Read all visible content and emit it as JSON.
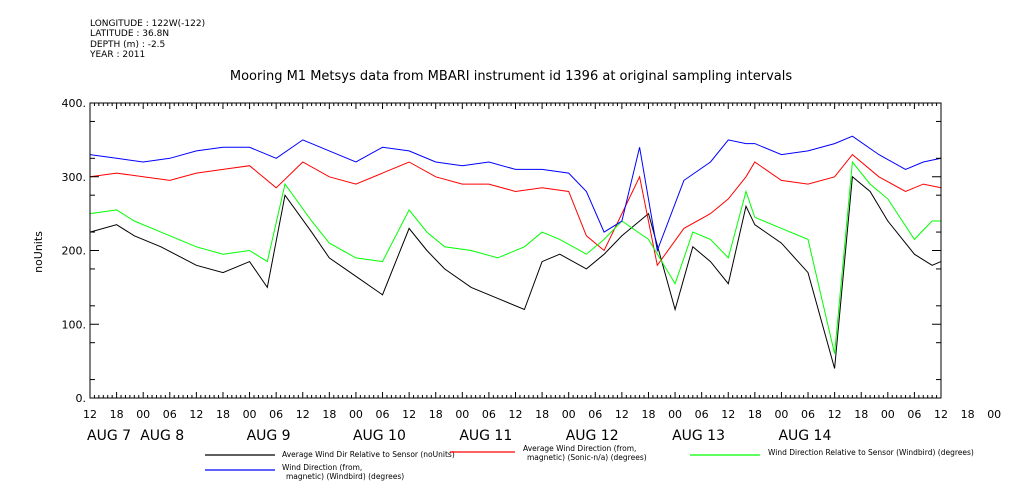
{
  "header": {
    "lines": [
      "LONGITUDE : 122W(-122)",
      "LATITUDE : 36.8N",
      "DEPTH (m) : -2.5",
      "YEAR : 2011"
    ]
  },
  "chart_data": {
    "type": "line",
    "title": "Mooring M1 Metsys data from MBARI instrument id 1396 at original sampling intervals",
    "ylabel": "noUnits",
    "xlabel": "",
    "ylim": [
      0,
      400
    ],
    "yticks": [
      "0.",
      "100.",
      "200.",
      "300.",
      "400."
    ],
    "x_hour_ticks": [
      "12",
      "18",
      "00",
      "06",
      "12",
      "18",
      "00",
      "06",
      "12",
      "18",
      "00",
      "06",
      "12",
      "18",
      "00",
      "06",
      "12",
      "18",
      "00",
      "06",
      "12",
      "18",
      "00",
      "06",
      "12",
      "18",
      "00",
      "06",
      "12",
      "18",
      "00",
      "06",
      "12",
      "18",
      "00",
      "06",
      "12"
    ],
    "x_day_labels": [
      "AUG  7",
      "AUG  8",
      "AUG  9",
      "AUG 10",
      "AUG 11",
      "AUG 12",
      "AUG 13",
      "AUG 14"
    ],
    "xlim_hours": [
      0,
      192
    ],
    "grid": false,
    "legend_position": "bottom",
    "series": [
      {
        "name": "Average Wind Dir Relative to Sensor (noUnits)",
        "color": "#000000",
        "x": [
          0,
          6,
          10,
          16,
          24,
          30,
          36,
          40,
          44,
          50,
          54,
          60,
          66,
          72,
          76,
          80,
          86,
          92,
          98,
          102,
          106,
          112,
          116,
          120,
          126,
          132,
          136,
          140,
          144,
          148,
          150,
          156,
          162,
          168,
          172,
          176,
          180,
          186,
          190,
          192
        ],
        "y": [
          225,
          235,
          220,
          205,
          180,
          170,
          185,
          150,
          275,
          225,
          190,
          165,
          140,
          230,
          200,
          175,
          150,
          135,
          120,
          185,
          195,
          175,
          195,
          220,
          250,
          120,
          205,
          185,
          155,
          260,
          235,
          210,
          170,
          40,
          300,
          280,
          240,
          195,
          180,
          185
        ]
      },
      {
        "name": "Average Wind Direction (from, magnetic) (Sonic-n/a) (degrees)",
        "color": "#ff0000",
        "x": [
          0,
          6,
          12,
          18,
          24,
          30,
          36,
          42,
          48,
          54,
          60,
          66,
          72,
          78,
          84,
          90,
          96,
          102,
          108,
          112,
          116,
          120,
          124,
          128,
          134,
          140,
          144,
          148,
          150,
          156,
          162,
          168,
          172,
          178,
          184,
          188,
          192
        ],
        "y": [
          300,
          305,
          300,
          295,
          305,
          310,
          315,
          285,
          320,
          300,
          290,
          305,
          320,
          300,
          290,
          290,
          280,
          285,
          280,
          220,
          200,
          250,
          300,
          180,
          230,
          250,
          270,
          300,
          320,
          295,
          290,
          300,
          330,
          300,
          280,
          290,
          285
        ]
      },
      {
        "name": "Wind Direction Relative to Sensor (Windbird) (degrees)",
        "color": "#00ff00",
        "x": [
          0,
          6,
          10,
          16,
          24,
          30,
          36,
          40,
          44,
          50,
          54,
          60,
          66,
          72,
          76,
          80,
          86,
          92,
          98,
          102,
          106,
          112,
          116,
          120,
          126,
          132,
          136,
          140,
          144,
          148,
          150,
          156,
          162,
          168,
          172,
          176,
          180,
          186,
          190,
          192
        ],
        "y": [
          250,
          255,
          240,
          225,
          205,
          195,
          200,
          185,
          290,
          240,
          210,
          190,
          185,
          255,
          225,
          205,
          200,
          190,
          205,
          225,
          215,
          195,
          215,
          240,
          215,
          155,
          225,
          215,
          190,
          280,
          245,
          230,
          215,
          60,
          320,
          290,
          270,
          215,
          240,
          240
        ]
      },
      {
        "name": "Wind Direction (from, magnetic) (Windbird) (degrees)",
        "color": "#0000ff",
        "x": [
          0,
          6,
          12,
          18,
          24,
          30,
          36,
          42,
          48,
          54,
          60,
          66,
          72,
          78,
          84,
          90,
          96,
          102,
          108,
          112,
          116,
          120,
          124,
          128,
          134,
          140,
          144,
          148,
          150,
          156,
          162,
          168,
          172,
          178,
          184,
          188,
          192
        ],
        "y": [
          330,
          325,
          320,
          325,
          335,
          340,
          340,
          325,
          350,
          335,
          320,
          340,
          335,
          320,
          315,
          320,
          310,
          310,
          305,
          280,
          225,
          240,
          340,
          200,
          295,
          320,
          350,
          345,
          345,
          330,
          335,
          345,
          355,
          330,
          310,
          320,
          325
        ]
      }
    ],
    "legend": [
      {
        "label": "Average Wind Dir Relative to Sensor (noUnits)",
        "color": "#000000"
      },
      {
        "label": "Average Wind Direction (from, magnetic) (Sonic-n/a) (degrees)",
        "color": "#ff0000"
      },
      {
        "label": "Wind Direction Relative to Sensor (Windbird) (degrees)",
        "color": "#00ff00"
      },
      {
        "label": "Wind Direction (from, magnetic) (Windbird) (degrees)",
        "color": "#0000ff"
      }
    ]
  }
}
